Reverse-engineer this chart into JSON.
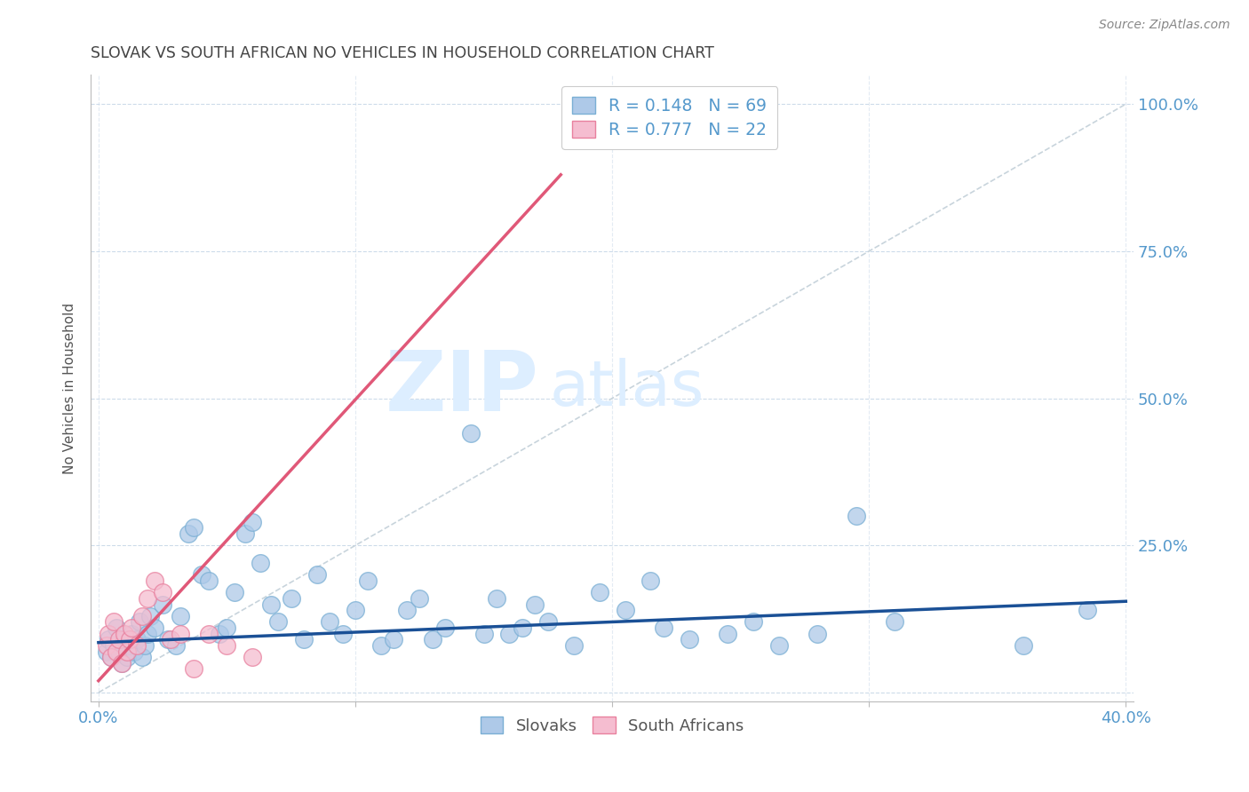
{
  "title": "SLOVAK VS SOUTH AFRICAN NO VEHICLES IN HOUSEHOLD CORRELATION CHART",
  "source": "Source: ZipAtlas.com",
  "ylabel": "No Vehicles in Household",
  "xlim": [
    0.0,
    0.4
  ],
  "ylim": [
    -0.015,
    1.05
  ],
  "yticks": [
    0.0,
    0.25,
    0.5,
    0.75,
    1.0
  ],
  "ytick_labels_right": [
    "",
    "25.0%",
    "50.0%",
    "75.0%",
    "100.0%"
  ],
  "xticks": [
    0.0,
    0.1,
    0.2,
    0.3,
    0.4
  ],
  "xtick_labels": [
    "0.0%",
    "",
    "",
    "",
    "40.0%"
  ],
  "slovak_color": "#aec9e8",
  "slovak_edge_color": "#7aafd4",
  "south_african_color": "#f5bdd0",
  "south_african_edge_color": "#e8809e",
  "blue_line_color": "#1a5096",
  "pink_line_color": "#e05878",
  "diagonal_line_color": "#c8d4dc",
  "legend_R1": "0.148",
  "legend_N1": "69",
  "legend_R2": "0.777",
  "legend_N2": "22",
  "label_slovaks": "Slovaks",
  "label_south_africans": "South Africans",
  "title_color": "#444444",
  "axis_label_color": "#5599cc",
  "watermark_zip": "ZIP",
  "watermark_atlas": "atlas",
  "watermark_color": "#ddeeff",
  "slovak_x": [
    0.003,
    0.004,
    0.005,
    0.006,
    0.007,
    0.008,
    0.009,
    0.01,
    0.011,
    0.012,
    0.013,
    0.014,
    0.015,
    0.016,
    0.017,
    0.018,
    0.019,
    0.02,
    0.022,
    0.025,
    0.027,
    0.03,
    0.032,
    0.035,
    0.037,
    0.04,
    0.043,
    0.047,
    0.05,
    0.053,
    0.057,
    0.06,
    0.063,
    0.067,
    0.07,
    0.075,
    0.08,
    0.085,
    0.09,
    0.095,
    0.1,
    0.105,
    0.11,
    0.115,
    0.12,
    0.125,
    0.13,
    0.135,
    0.145,
    0.15,
    0.155,
    0.16,
    0.165,
    0.17,
    0.175,
    0.185,
    0.195,
    0.205,
    0.215,
    0.22,
    0.23,
    0.245,
    0.255,
    0.265,
    0.28,
    0.295,
    0.31,
    0.36,
    0.385
  ],
  "slovak_y": [
    0.07,
    0.09,
    0.06,
    0.08,
    0.11,
    0.07,
    0.05,
    0.09,
    0.06,
    0.08,
    0.1,
    0.07,
    0.09,
    0.12,
    0.06,
    0.08,
    0.1,
    0.13,
    0.11,
    0.15,
    0.09,
    0.08,
    0.13,
    0.27,
    0.28,
    0.2,
    0.19,
    0.1,
    0.11,
    0.17,
    0.27,
    0.29,
    0.22,
    0.15,
    0.12,
    0.16,
    0.09,
    0.2,
    0.12,
    0.1,
    0.14,
    0.19,
    0.08,
    0.09,
    0.14,
    0.16,
    0.09,
    0.11,
    0.44,
    0.1,
    0.16,
    0.1,
    0.11,
    0.15,
    0.12,
    0.08,
    0.17,
    0.14,
    0.19,
    0.11,
    0.09,
    0.1,
    0.12,
    0.08,
    0.1,
    0.3,
    0.12,
    0.08,
    0.14
  ],
  "sa_x": [
    0.003,
    0.004,
    0.005,
    0.006,
    0.007,
    0.008,
    0.009,
    0.01,
    0.011,
    0.012,
    0.013,
    0.015,
    0.017,
    0.019,
    0.022,
    0.025,
    0.028,
    0.032,
    0.037,
    0.043,
    0.05,
    0.06
  ],
  "sa_y": [
    0.08,
    0.1,
    0.06,
    0.12,
    0.07,
    0.09,
    0.05,
    0.1,
    0.07,
    0.09,
    0.11,
    0.08,
    0.13,
    0.16,
    0.19,
    0.17,
    0.09,
    0.1,
    0.04,
    0.1,
    0.08,
    0.06
  ],
  "blue_line_x": [
    0.0,
    0.4
  ],
  "blue_line_y": [
    0.085,
    0.155
  ],
  "pink_line_x": [
    0.0,
    0.18
  ],
  "pink_line_y": [
    0.02,
    0.88
  ]
}
